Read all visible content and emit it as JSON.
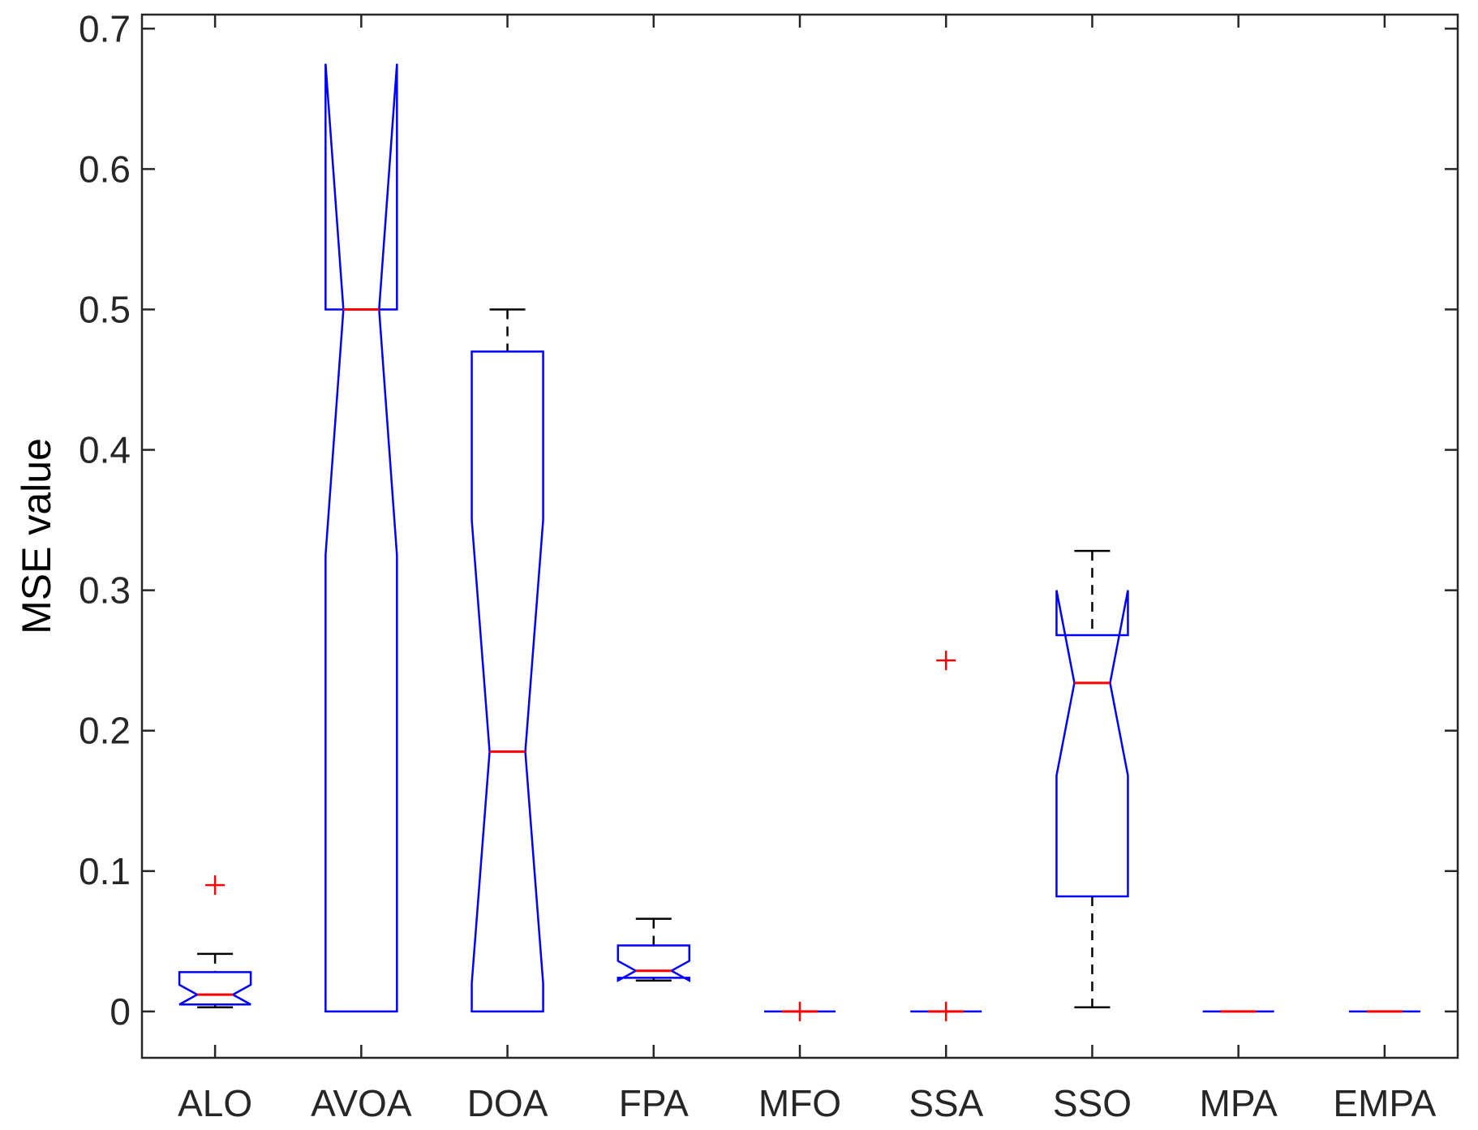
{
  "chart_data": {
    "type": "box",
    "xlabel": "",
    "ylabel": "MSE value",
    "ylim": [
      -0.033,
      0.71
    ],
    "yticks": [
      0,
      0.1,
      0.2,
      0.3,
      0.4,
      0.5,
      0.6,
      0.7
    ],
    "ytick_labels": [
      "0",
      "0.1",
      "0.2",
      "0.3",
      "0.4",
      "0.5",
      "0.6",
      "0.7"
    ],
    "notched": true,
    "categories": [
      "ALO",
      "AVOA",
      "DOA",
      "FPA",
      "MFO",
      "SSA",
      "SSO",
      "MPA",
      "EMPA"
    ],
    "boxes": [
      {
        "category": "ALO",
        "whisker_low": 0.003,
        "q1": 0.005,
        "median": 0.012,
        "q3": 0.028,
        "whisker_high": 0.041,
        "notch_low": 0.005,
        "notch_high": 0.019,
        "outliers": [
          0.09
        ]
      },
      {
        "category": "AVOA",
        "whisker_low": 0.0,
        "q1": 0.0,
        "median": 0.5,
        "q3": 0.5,
        "whisker_high": 0.5,
        "notch_low": 0.325,
        "notch_high": 0.675,
        "outliers": []
      },
      {
        "category": "DOA",
        "whisker_low": 0.0,
        "q1": 0.0,
        "median": 0.185,
        "q3": 0.47,
        "whisker_high": 0.5,
        "notch_low": 0.02,
        "notch_high": 0.35,
        "outliers": []
      },
      {
        "category": "FPA",
        "whisker_low": 0.022,
        "q1": 0.024,
        "median": 0.029,
        "q3": 0.047,
        "whisker_high": 0.066,
        "notch_low": 0.022,
        "notch_high": 0.036,
        "outliers": []
      },
      {
        "category": "MFO",
        "whisker_low": 0.0,
        "q1": 0.0,
        "median": 0.0,
        "q3": 0.0,
        "whisker_high": 0.0,
        "notch_low": 0.0,
        "notch_high": 0.0,
        "outliers": [
          0.0
        ]
      },
      {
        "category": "SSA",
        "whisker_low": 0.0,
        "q1": 0.0,
        "median": 0.0,
        "q3": 0.0,
        "whisker_high": 0.0,
        "notch_low": 0.0,
        "notch_high": 0.0,
        "outliers": [
          0.25,
          0.0
        ]
      },
      {
        "category": "SSO",
        "whisker_low": 0.003,
        "q1": 0.082,
        "median": 0.234,
        "q3": 0.268,
        "whisker_high": 0.328,
        "notch_low": 0.168,
        "notch_high": 0.3,
        "outliers": []
      },
      {
        "category": "MPA",
        "whisker_low": 0.0,
        "q1": 0.0,
        "median": 0.0,
        "q3": 0.0,
        "whisker_high": 0.0,
        "notch_low": 0.0,
        "notch_high": 0.0,
        "outliers": []
      },
      {
        "category": "EMPA",
        "whisker_low": 0.0,
        "q1": 0.0,
        "median": 0.0,
        "q3": 0.0,
        "whisker_high": 0.0,
        "notch_low": 0.0,
        "notch_high": 0.0,
        "outliers": []
      }
    ],
    "colors": {
      "box": "#0000ff",
      "median": "#ff0000",
      "whisker": "#000000",
      "outlier": "#ff0000",
      "axis": "#262626"
    },
    "grid": false,
    "legend": "none"
  }
}
